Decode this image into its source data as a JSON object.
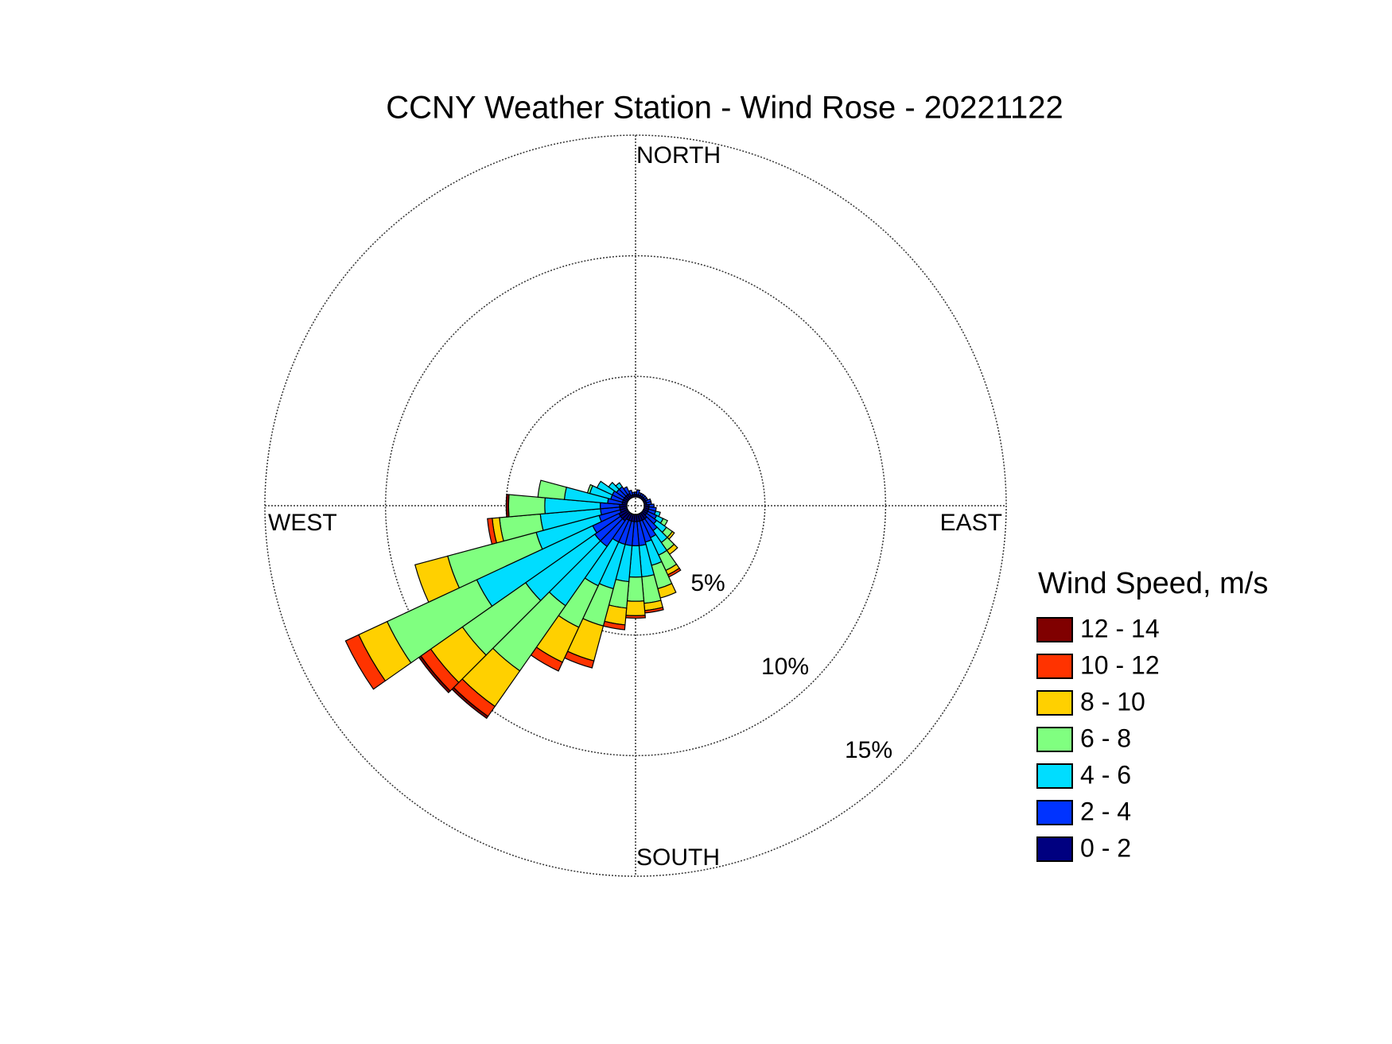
{
  "chart_data": {
    "type": "windrose",
    "title": "CCNY Weather Station - Wind Rose - 20221122",
    "compass_labels": {
      "north": "NORTH",
      "east": "EAST",
      "south": "SOUTH",
      "west": "WEST"
    },
    "legend_title": "Wind Speed, m/s",
    "x": [
      0,
      10,
      20,
      30,
      40,
      50,
      60,
      70,
      80,
      90,
      100,
      110,
      120,
      130,
      140,
      150,
      160,
      170,
      180,
      190,
      200,
      210,
      220,
      230,
      240,
      250,
      260,
      270,
      280,
      290,
      300,
      310,
      320,
      330,
      340,
      350
    ],
    "rlim": [
      0,
      15
    ],
    "rticks": [
      {
        "value": 5,
        "label": "5%"
      },
      {
        "value": 10,
        "label": "10%"
      },
      {
        "value": 15,
        "label": "15%"
      }
    ],
    "grid": true,
    "series": [
      {
        "name": "0 - 2",
        "color": "#000080",
        "values": [
          0.1,
          0.1,
          0.1,
          0.1,
          0.1,
          0.1,
          0.1,
          0.1,
          0.1,
          0.2,
          0.2,
          0.2,
          0.2,
          0.2,
          0.3,
          0.3,
          0.3,
          0.3,
          0.3,
          0.3,
          0.3,
          0.3,
          0.4,
          0.4,
          0.4,
          0.3,
          0.3,
          0.3,
          0.2,
          0.2,
          0.2,
          0.2,
          0.2,
          0.2,
          0.1,
          0.1
        ]
      },
      {
        "name": "2 - 4",
        "color": "#0033ff",
        "values": [
          0.1,
          0.2,
          0.1,
          0.1,
          0.1,
          0.1,
          0.1,
          0.2,
          0.2,
          0.2,
          0.3,
          0.3,
          0.4,
          0.5,
          0.6,
          0.8,
          0.9,
          1.0,
          1.0,
          1.0,
          1.0,
          1.0,
          1.3,
          1.3,
          1.2,
          0.9,
          0.8,
          0.8,
          0.6,
          0.5,
          0.5,
          0.4,
          0.4,
          0.3,
          0.2,
          0.1
        ]
      },
      {
        "name": "4 - 6",
        "color": "#00ddff",
        "values": [
          0,
          0,
          0,
          0,
          0,
          0,
          0,
          0,
          0,
          0,
          0,
          0.2,
          0.3,
          0.5,
          0.6,
          0.8,
          1.0,
          1.3,
          1.3,
          1.5,
          1.9,
          2.0,
          3.0,
          3.5,
          5.3,
          2.7,
          2.5,
          2.3,
          1.8,
          0.9,
          0.7,
          0.4,
          0.2,
          0,
          0,
          0
        ]
      },
      {
        "name": "6 - 8",
        "color": "#80ff80",
        "values": [
          0,
          0,
          0,
          0,
          0,
          0,
          0,
          0,
          0,
          0,
          0,
          0,
          0.2,
          0.3,
          0.4,
          0.7,
          1.0,
          1.1,
          1.0,
          1.1,
          1.6,
          1.9,
          3.3,
          3.2,
          4.1,
          3.8,
          1.7,
          1.5,
          1.1,
          0.1,
          0,
          0,
          0,
          0,
          0,
          0
        ]
      },
      {
        "name": "8 - 10",
        "color": "#ffd000",
        "values": [
          0,
          0,
          0,
          0,
          0,
          0,
          0,
          0,
          0,
          0,
          0,
          0,
          0,
          0.1,
          0.2,
          0.2,
          0.4,
          0.3,
          0.6,
          0.7,
          1.5,
          1.6,
          1.8,
          1.6,
          1.3,
          1.4,
          0.3,
          0,
          0,
          0,
          0,
          0,
          0,
          0,
          0,
          0
        ]
      },
      {
        "name": "10 - 12",
        "color": "#ff3300",
        "values": [
          0,
          0,
          0,
          0,
          0,
          0,
          0,
          0,
          0,
          0,
          0,
          0,
          0,
          0,
          0,
          0.1,
          0,
          0.1,
          0.1,
          0.2,
          0.3,
          0.4,
          0.5,
          0.5,
          0.6,
          0,
          0.2,
          0,
          0,
          0,
          0,
          0,
          0,
          0,
          0,
          0
        ]
      },
      {
        "name": "12 - 14",
        "color": "#800000",
        "values": [
          0,
          0,
          0,
          0,
          0,
          0,
          0,
          0,
          0,
          0,
          0,
          0,
          0,
          0,
          0,
          0,
          0,
          0,
          0,
          0,
          0,
          0,
          0.1,
          0.1,
          0,
          0,
          0,
          0.1,
          0,
          0,
          0,
          0,
          0,
          0,
          0,
          0
        ]
      }
    ]
  }
}
